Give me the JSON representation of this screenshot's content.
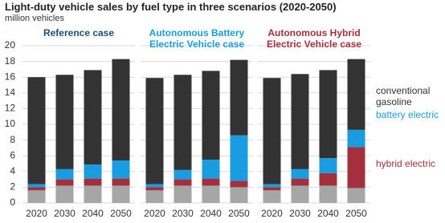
{
  "chart_data": {
    "type": "bar",
    "stacked": true,
    "title": "Light-duty vehicle sales by fuel type in three scenarios (2020-2050)",
    "subtitle": "million vehicles",
    "panels": [
      {
        "title": "Reference case",
        "color": "#1f4e79"
      },
      {
        "title": "Autonomous Battery Electric Vehicle case",
        "color": "#1a9ce0"
      },
      {
        "title": "Autonomous Hybrid Electric Vehicle case",
        "color": "#a3303c"
      }
    ],
    "categories": [
      "2020",
      "2030",
      "2040",
      "2050"
    ],
    "ylim": [
      0,
      20
    ],
    "yticks": [
      0,
      2,
      4,
      6,
      8,
      10,
      12,
      14,
      16,
      18,
      20
    ],
    "grid": true,
    "series": [
      {
        "color": "#a6a6a6",
        "values": [
          [
            1.6,
            2.2,
            2.2,
            2.2
          ],
          [
            1.6,
            2.2,
            2.2,
            2.0
          ],
          [
            1.6,
            2.2,
            2.2,
            1.9
          ]
        ]
      },
      {
        "name": "hybrid electric",
        "color": "#a3303c",
        "values": [
          [
            0.4,
            0.8,
            0.9,
            0.9
          ],
          [
            0.4,
            0.8,
            0.9,
            0.8
          ],
          [
            0.4,
            0.9,
            1.6,
            5.2
          ]
        ]
      },
      {
        "name": "battery electric",
        "color": "#1a9ce0",
        "values": [
          [
            0.4,
            1.3,
            1.8,
            2.3
          ],
          [
            0.4,
            1.2,
            2.4,
            5.8
          ],
          [
            0.4,
            1.2,
            1.9,
            2.2
          ]
        ]
      },
      {
        "name": "conventional gasoline",
        "color": "#333333",
        "values": [
          [
            13.6,
            12.0,
            12.0,
            12.9
          ],
          [
            13.5,
            12.1,
            11.3,
            9.6
          ],
          [
            13.5,
            12.1,
            11.2,
            9.0
          ]
        ]
      }
    ]
  }
}
